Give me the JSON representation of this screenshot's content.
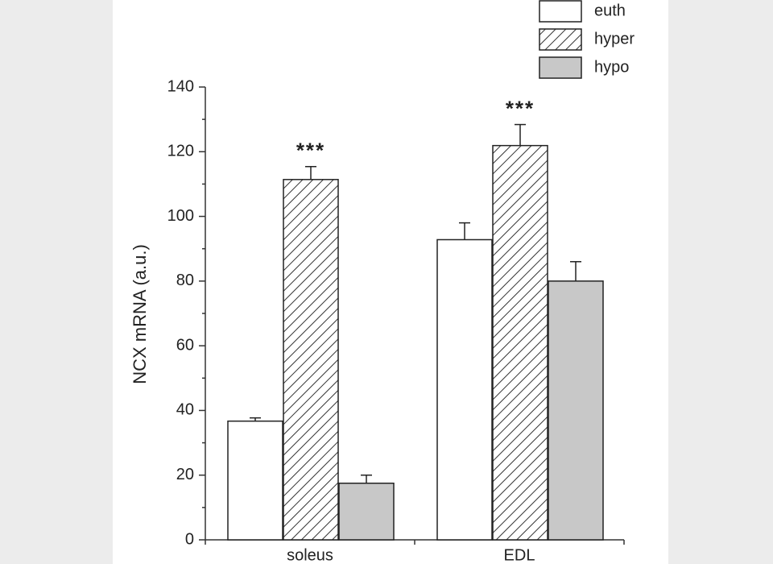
{
  "chart_data": {
    "type": "bar",
    "y_label": "NCX mRNA (a.u.)",
    "categories": [
      "soleus",
      "EDL"
    ],
    "series": [
      {
        "name": "euth",
        "color": "#ffffff",
        "pattern": "none",
        "values": [
          36.7,
          92.8
        ],
        "errors": [
          1,
          5.2
        ]
      },
      {
        "name": "hyper",
        "color": "#ffffff",
        "pattern": "hatch",
        "values": [
          111.4,
          121.9
        ],
        "errors": [
          4,
          6.5
        ]
      },
      {
        "name": "hypo",
        "color": "#c8c8c8",
        "pattern": "none",
        "values": [
          17.5,
          80
        ],
        "errors": [
          2.5,
          6
        ]
      }
    ],
    "annotations": [
      {
        "text": "***",
        "category": "soleus",
        "series": "hyper"
      },
      {
        "text": "***",
        "category": "EDL",
        "series": "hyper"
      }
    ],
    "ylim": [
      0,
      140
    ],
    "yticks": [
      0,
      20,
      40,
      60,
      80,
      100,
      120,
      140
    ],
    "legend": "top-right"
  }
}
